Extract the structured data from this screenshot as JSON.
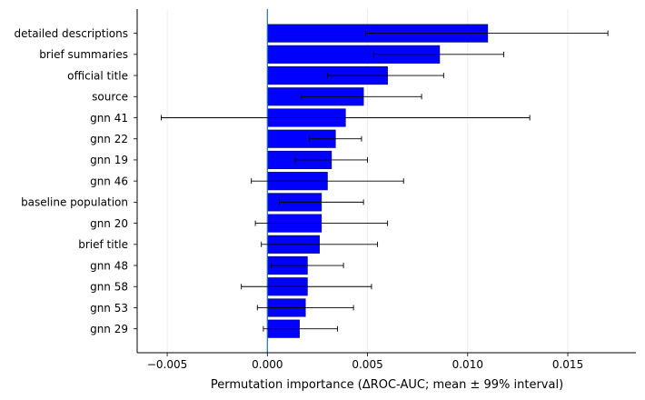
{
  "chart_data": {
    "type": "bar",
    "orientation": "horizontal",
    "title": "",
    "xlabel": "Permutation importance (ΔROC-AUC; mean ± 99% interval)",
    "ylabel": "",
    "xlim": [
      -0.0065,
      0.0184
    ],
    "xticks": [
      -0.005,
      0.0,
      0.005,
      0.01,
      0.015
    ],
    "xtick_labels": [
      "−0.005",
      "0.000",
      "0.005",
      "0.010",
      "0.015"
    ],
    "grid": "vertical",
    "zero_line": true,
    "colors": {
      "bar": "#0000ff",
      "bar_edge": "#00006a",
      "zero_line": "#1f77b4",
      "error_bar": "#000000",
      "grid": "#e8e8e8"
    },
    "categories": [
      "detailed descriptions",
      "brief summaries",
      "official title",
      "source",
      "gnn 41",
      "gnn 22",
      "gnn 19",
      "gnn 46",
      "baseline population",
      "gnn 20",
      "brief title",
      "gnn 48",
      "gnn 58",
      "gnn 53",
      "gnn 29"
    ],
    "values": [
      0.011,
      0.0086,
      0.006,
      0.0048,
      0.0039,
      0.0034,
      0.0032,
      0.003,
      0.0027,
      0.0027,
      0.0026,
      0.002,
      0.002,
      0.0019,
      0.0016
    ],
    "ci_low": [
      0.0049,
      0.0053,
      0.003,
      0.0017,
      -0.0053,
      0.0021,
      0.0014,
      -0.0008,
      0.0006,
      -0.0006,
      -0.0003,
      0.0002,
      -0.0013,
      -0.0005,
      -0.0002
    ],
    "ci_high": [
      0.017,
      0.0118,
      0.0088,
      0.0077,
      0.0131,
      0.0047,
      0.005,
      0.0068,
      0.0048,
      0.006,
      0.0055,
      0.0038,
      0.0052,
      0.0043,
      0.0035
    ]
  }
}
